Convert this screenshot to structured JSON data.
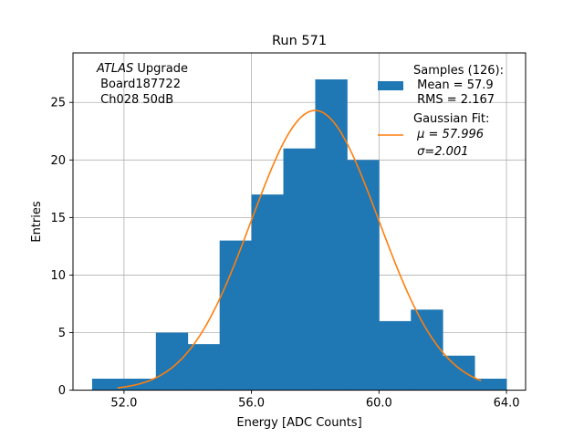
{
  "chart_data": {
    "type": "bar",
    "title": "Run 571",
    "xlabel": "Energy [ADC Counts]",
    "ylabel": "Entries",
    "xlim": [
      50.4,
      64.6
    ],
    "ylim": [
      0,
      29.3
    ],
    "xticks": [
      52,
      56,
      60,
      64
    ],
    "xtick_labels": [
      "52.0",
      "56.0",
      "60.0",
      "64.0"
    ],
    "yticks": [
      0,
      5,
      10,
      15,
      20,
      25
    ],
    "ytick_labels": [
      "0",
      "5",
      "10",
      "15",
      "20",
      "25"
    ],
    "grid": true,
    "bins": [
      51,
      52,
      53,
      54,
      55,
      56,
      57,
      58,
      59,
      60,
      61,
      62,
      63,
      64
    ],
    "counts": [
      1,
      1,
      5,
      4,
      13,
      17,
      21,
      27,
      20,
      6,
      7,
      3,
      1
    ],
    "bar_color": "#1f77b4",
    "fit": {
      "type": "gaussian",
      "mu": 57.996,
      "sigma": 2.001,
      "amplitude": 24.3,
      "x_range": [
        51.8,
        63.2
      ],
      "color": "#ff7f0e"
    },
    "legend": {
      "position": "top-right",
      "samples_lines": [
        "Samples (126):",
        " Mean = 57.9",
        " RMS = 2.167"
      ],
      "fit_lines": [
        "Gaussian Fit:",
        " μ = 57.996",
        " σ=2.001"
      ]
    },
    "annotation": {
      "position": "top-left",
      "italic": "ATLAS",
      "rest": " Upgrade",
      "line2": " Board187722",
      "line3": " Ch028 50dB"
    }
  }
}
